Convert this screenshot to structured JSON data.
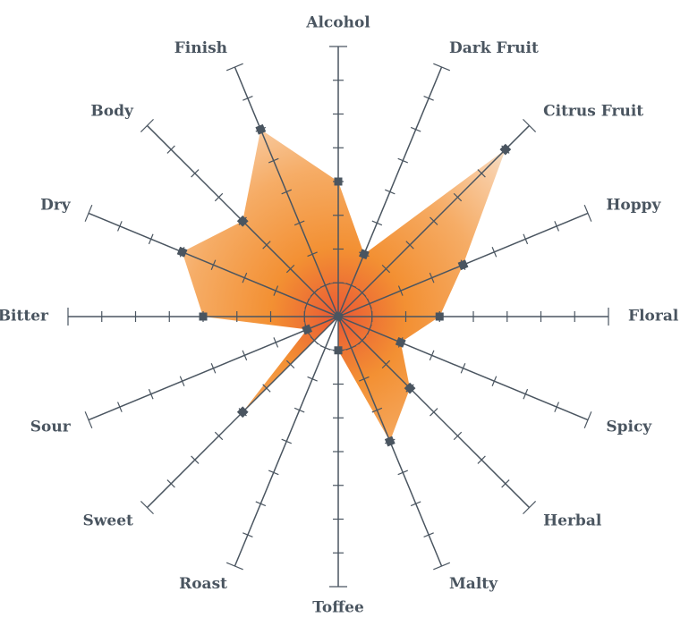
{
  "chart_data": {
    "type": "radar",
    "categories": [
      "Alcohol",
      "Dark Fruit",
      "Citrus Fruit",
      "Hoppy",
      "Floral",
      "Spicy",
      "Herbal",
      "Malty",
      "Toffee",
      "Roast",
      "Sweet",
      "Sour",
      "Bitter",
      "Dry",
      "Body",
      "Finish"
    ],
    "values": [
      4,
      2,
      7,
      4,
      3,
      2,
      3,
      4,
      1,
      0,
      4,
      1,
      4,
      5,
      4,
      6
    ],
    "rlim": [
      0,
      8
    ],
    "rticks": [
      1,
      2,
      3,
      4,
      5,
      6,
      7,
      8
    ],
    "color": "#f28a28",
    "axis_color": "#4a5560"
  }
}
